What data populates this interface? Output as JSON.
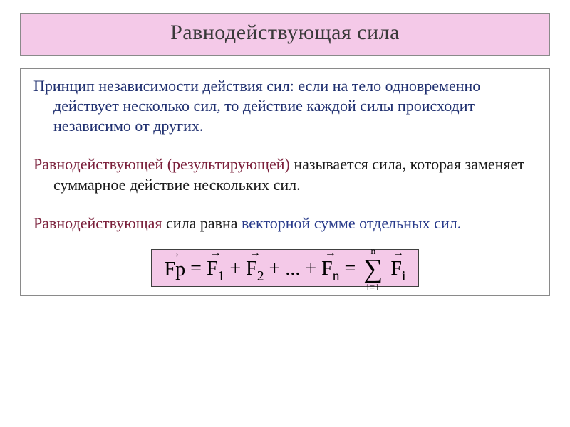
{
  "slide": {
    "title": "Равнодействующая сила",
    "title_bg": "#f4c9e8",
    "title_border": "#8a8a8a",
    "title_color": "#3a3a3a",
    "title_fontsize": 30,
    "content_border": "#8a8a8a",
    "body_fontsize": 22,
    "colors": {
      "navy": "#1f2f6f",
      "maroon": "#7a1f3a",
      "black": "#1a1a1a",
      "blue2": "#283a8a"
    },
    "para1": {
      "lead": "Принцип независимости действия сил: ",
      "rest": "если на тело одновременно действует несколько сил, то действие каждой силы происходит независимо от других."
    },
    "para2": {
      "lead": "Равнодействующей (результирующей)",
      "rest": "  называется сила, которая заменяет суммарное действие нескольких  сил."
    },
    "para3": {
      "part1": "Равнодействующая ",
      "part2": "сила равна ",
      "part3": "векторной сумме отдельных сил."
    },
    "formula": {
      "bg": "#f4c9e8",
      "border": "#404040",
      "fontsize": 28,
      "terms": {
        "Fp": "Fр",
        "F1": "F",
        "F1_sub": "1",
        "F2": "F",
        "F2_sub": "2",
        "dots": "...",
        "Fn": "F",
        "Fn_sub": "n",
        "Fi": "F",
        "Fi_sub": "i",
        "eq": " = ",
        "plus": " + ",
        "sigma_upper": "n",
        "sigma_lower": "i=1",
        "arrow": "→"
      }
    }
  }
}
